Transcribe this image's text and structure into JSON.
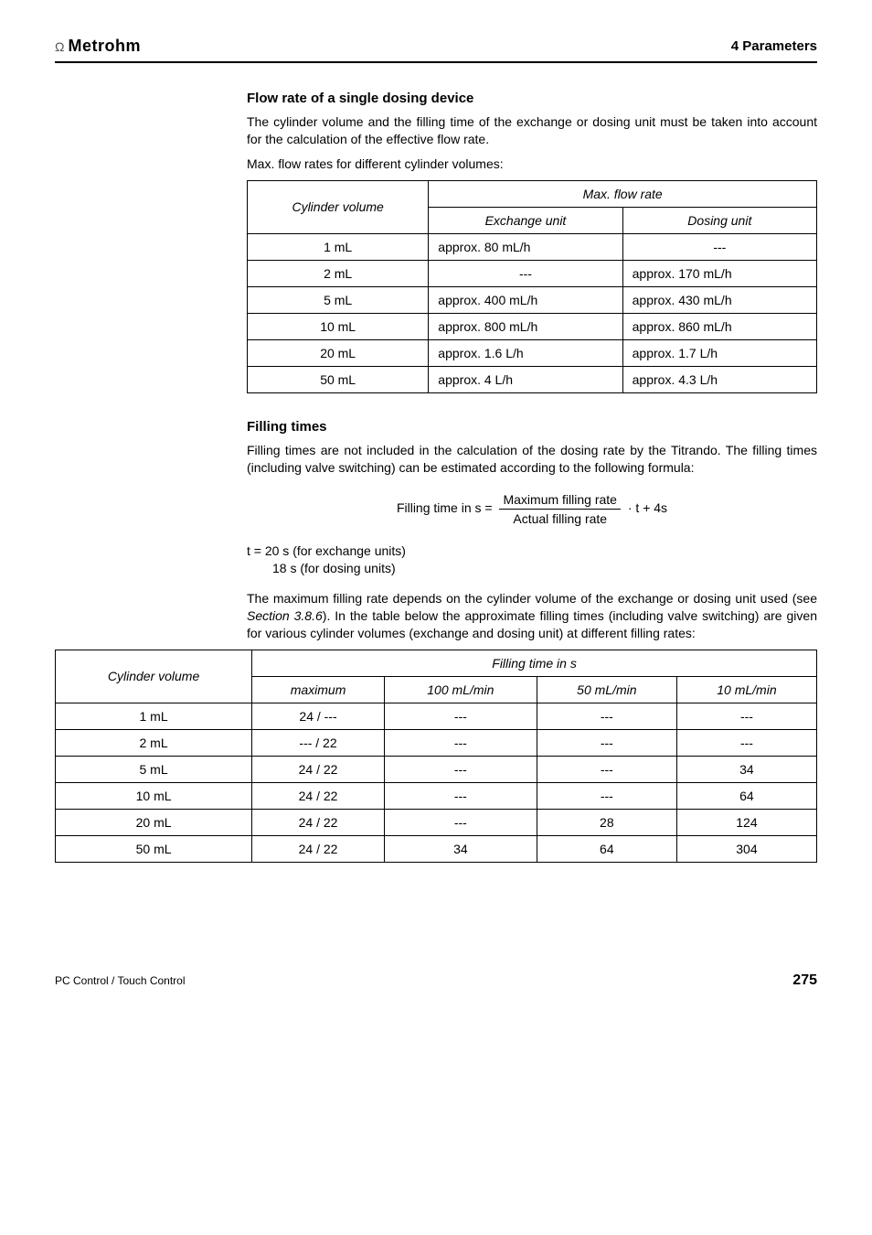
{
  "header": {
    "brand": "Metrohm",
    "title": "4 Parameters"
  },
  "section1": {
    "heading": "Flow rate of a single dosing device",
    "para1": "The cylinder volume and the filling time of the exchange or dosing unit must be taken into account for the calculation of the effective flow rate.",
    "para2": "Max. flow rates for different cylinder volumes:"
  },
  "table1": {
    "head": {
      "cyl": "Cylinder volume",
      "max": "Max. flow rate",
      "ex": "Exchange unit",
      "du": "Dosing unit"
    },
    "rows": [
      {
        "cyl": "1 mL",
        "ex": "approx. 80 mL/h",
        "du": "---"
      },
      {
        "cyl": "2 mL",
        "ex": "---",
        "du": "approx. 170 mL/h"
      },
      {
        "cyl": "5 mL",
        "ex": "approx. 400 mL/h",
        "du": "approx. 430 mL/h"
      },
      {
        "cyl": "10 mL",
        "ex": "approx. 800 mL/h",
        "du": "approx. 860 mL/h"
      },
      {
        "cyl": "20 mL",
        "ex": "approx. 1.6 L/h",
        "du": "approx. 1.7 L/h"
      },
      {
        "cyl": "50 mL",
        "ex": "approx. 4 L/h",
        "du": "approx. 4.3 L/h"
      }
    ]
  },
  "section2": {
    "heading": "Filling times",
    "para1": "Filling times are not included in the calculation of the dosing rate by the Titrando. The filling times (including valve switching) can be estimated according to the following formula:",
    "formula_lhs": "Filling time in s  =",
    "formula_top": "Maximum filling rate",
    "formula_bot": "Actual filling rate",
    "formula_rhs": " ·  t  +  4s",
    "tnote1": "t = 20 s (for exchange units)",
    "tnote2": "18 s (for dosing units)",
    "para2_a": "The maximum filling rate depends on the cylinder volume of the exchange or dosing unit used (see ",
    "para2_i": "Section 3.8.6",
    "para2_b": "). In the table below the approximate filling times (including valve switching) are given for various cylinder volumes (exchange and dosing unit) at different filling rates:"
  },
  "table2": {
    "head": {
      "cyl": "Cylinder volume",
      "ft": "Filling time in s",
      "c1": "maximum",
      "c2": "100 mL/min",
      "c3": "50 mL/min",
      "c4": "10 mL/min"
    },
    "rows": [
      {
        "cyl": "1 mL",
        "c1": "24 / ---",
        "c2": "---",
        "c3": "---",
        "c4": "---"
      },
      {
        "cyl": "2 mL",
        "c1": "--- / 22",
        "c2": "---",
        "c3": "---",
        "c4": "---"
      },
      {
        "cyl": "5 mL",
        "c1": "24 / 22",
        "c2": "---",
        "c3": "---",
        "c4": "34"
      },
      {
        "cyl": "10 mL",
        "c1": "24 / 22",
        "c2": "---",
        "c3": "---",
        "c4": "64"
      },
      {
        "cyl": "20 mL",
        "c1": "24 / 22",
        "c2": "---",
        "c3": "28",
        "c4": "124"
      },
      {
        "cyl": "50 mL",
        "c1": "24 / 22",
        "c2": "34",
        "c3": "64",
        "c4": "304"
      }
    ]
  },
  "footer": {
    "left": "PC Control / Touch Control",
    "page": "275"
  }
}
